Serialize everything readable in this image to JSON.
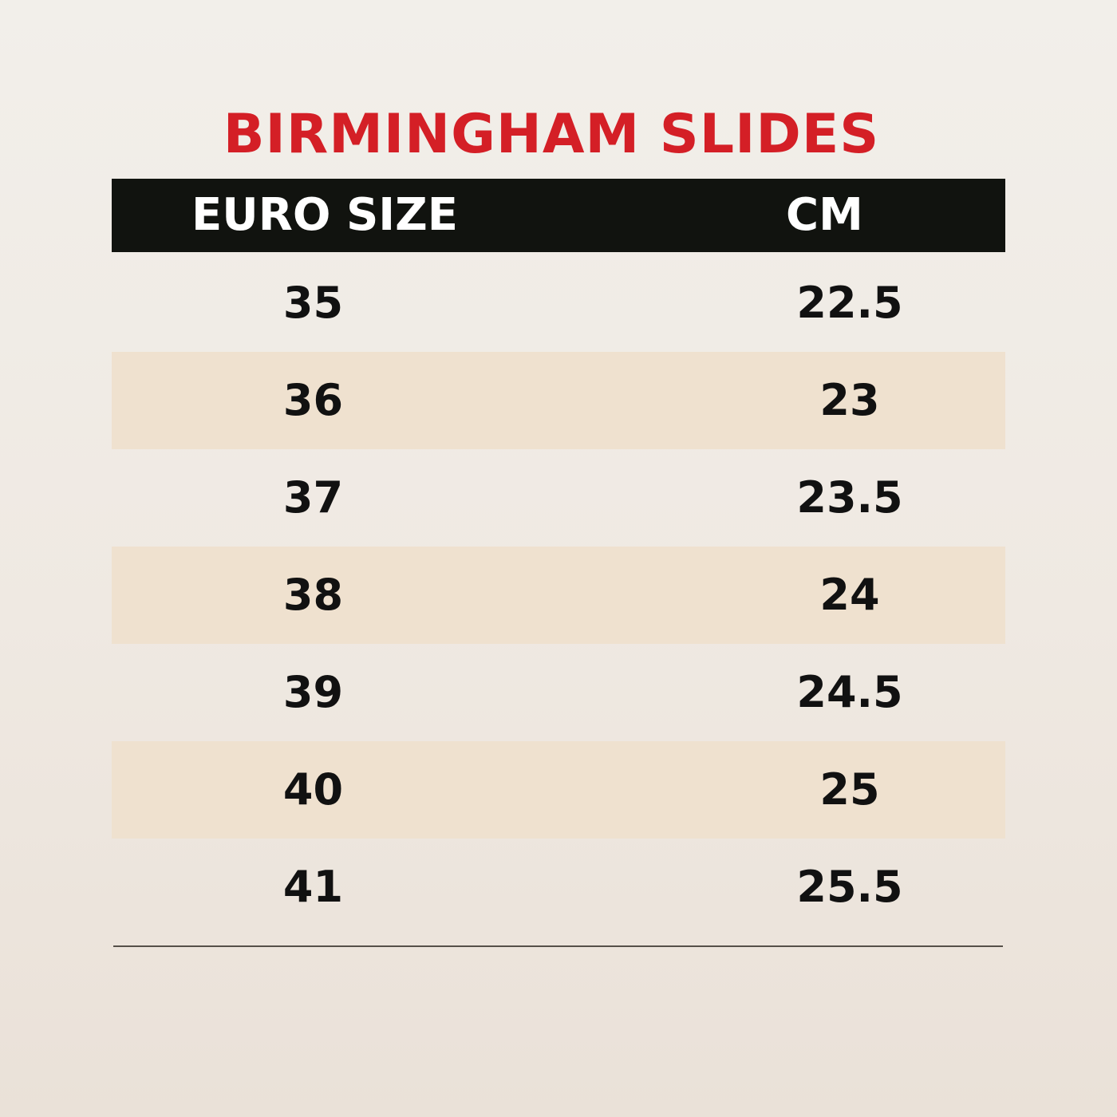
{
  "title": "BIRMINGHAM SLIDES",
  "table": {
    "headers": {
      "euro_size": "EURO SIZE",
      "cm": "CM"
    },
    "rows": [
      {
        "euro_size": "35",
        "cm": "22.5"
      },
      {
        "euro_size": "36",
        "cm": "23"
      },
      {
        "euro_size": "37",
        "cm": "23.5"
      },
      {
        "euro_size": "38",
        "cm": "24"
      },
      {
        "euro_size": "39",
        "cm": "24.5"
      },
      {
        "euro_size": "40",
        "cm": "25"
      },
      {
        "euro_size": "41",
        "cm": "25.5"
      }
    ]
  },
  "colors": {
    "title": "#d41f26",
    "header_background": "#11130f",
    "header_text": "#ffffff",
    "shaded_row": "#efe1cf",
    "body_text": "#111111"
  }
}
